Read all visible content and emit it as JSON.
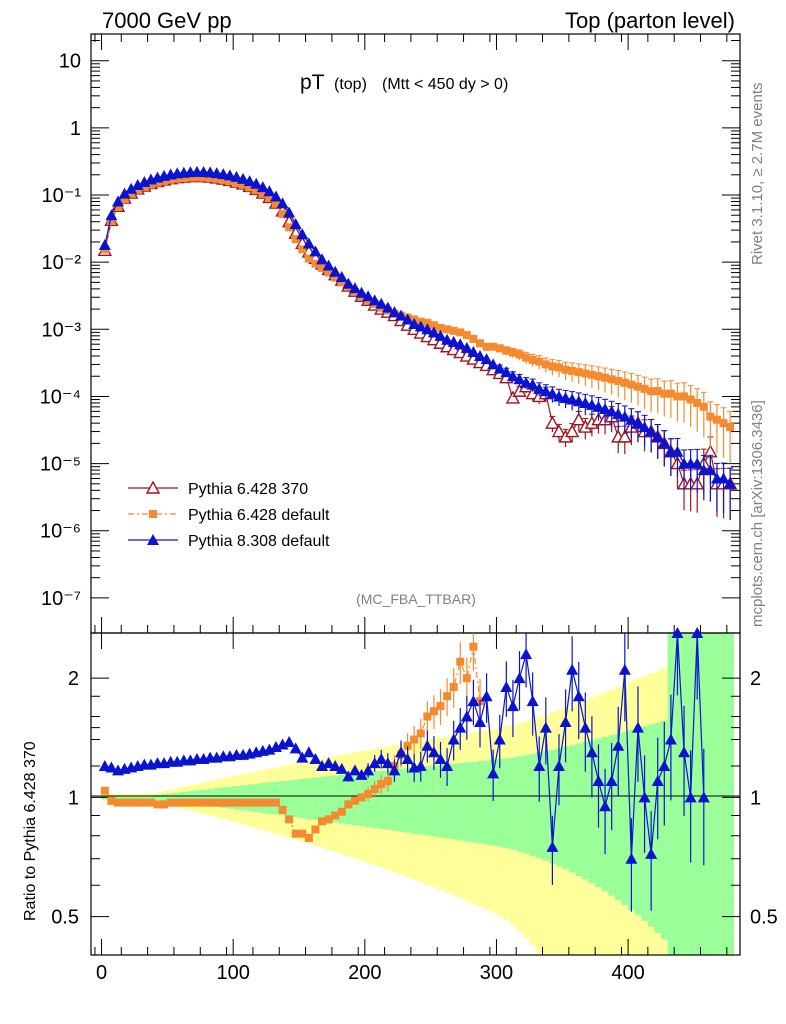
{
  "header": {
    "left": "7000 GeV pp",
    "right": "Top (parton level)"
  },
  "side": {
    "rivet": "Rivet 3.1.10, ≥ 2.7M events",
    "mcplots": "mcplots.cern.ch [arXiv:1306.3436]"
  },
  "plot_title": {
    "main": "pT",
    "sub1": "(top)",
    "sub2": "(Mtt < 450 dy > 0)"
  },
  "watermark": "(MC_FBA_TTBAR)",
  "ratio_ylabel": "Ratio to Pythia 6.428 370",
  "colors": {
    "p6_370": "#a0141e",
    "p6_default": "#f58a2e",
    "p8": "#0a14d0",
    "band_green": "#99ff99",
    "band_yellow": "#ffff99"
  },
  "chart_data": [
    {
      "type": "line",
      "panel": "main",
      "yscale": "log",
      "ylim": [
        3e-08,
        25
      ],
      "xlim": [
        -8,
        485
      ],
      "ytick_labels": [
        "10",
        "1",
        "10⁻¹",
        "10⁻²",
        "10⁻³",
        "10⁻⁴",
        "10⁻⁵",
        "10⁻⁶",
        "10⁻⁷"
      ],
      "legend_position": "lower-left",
      "series": [
        {
          "name": "Pythia 6.428 370",
          "marker": "open-triangle",
          "x": [
            2.5,
            7.5,
            12.5,
            17.5,
            22.5,
            27.5,
            32.5,
            37.5,
            42.5,
            47.5,
            52.5,
            57.5,
            62.5,
            67.5,
            72.5,
            77.5,
            82.5,
            87.5,
            92.5,
            97.5,
            102.5,
            107.5,
            112.5,
            117.5,
            122.5,
            127.5,
            132.5,
            137.5,
            142.5,
            147.5,
            152.5,
            157.5,
            162.5,
            167.5,
            172.5,
            177.5,
            182.5,
            187.5,
            192.5,
            197.5,
            202.5,
            207.5,
            212.5,
            217.5,
            222.5,
            227.5,
            232.5,
            237.5,
            242.5,
            247.5,
            252.5,
            257.5,
            262.5,
            267.5,
            272.5,
            277.5,
            282.5,
            287.5,
            292.5,
            297.5,
            302.5,
            307.5,
            312.5,
            317.5,
            322.5,
            327.5,
            332.5,
            337.5,
            342.5,
            347.5,
            352.5,
            357.5,
            362.5,
            367.5,
            372.5,
            377.5,
            382.5,
            387.5,
            392.5,
            397.5,
            402.5,
            407.5,
            412.5,
            417.5,
            422.5,
            427.5,
            432.5,
            437.5,
            442.5,
            447.5,
            452.5,
            457.5,
            462.5,
            467.5,
            472.5,
            477.5
          ],
          "y": [
            0.015,
            0.042,
            0.068,
            0.09,
            0.107,
            0.123,
            0.136,
            0.148,
            0.159,
            0.168,
            0.175,
            0.181,
            0.185,
            0.188,
            0.189,
            0.188,
            0.185,
            0.18,
            0.173,
            0.165,
            0.156,
            0.146,
            0.134,
            0.121,
            0.107,
            0.092,
            0.076,
            0.058,
            0.04,
            0.027,
            0.019,
            0.0142,
            0.0114,
            0.0094,
            0.0078,
            0.0065,
            0.0054,
            0.0044,
            0.0037,
            0.0031,
            0.0027,
            0.0023,
            0.002,
            0.0018,
            0.0016,
            0.00135,
            0.00115,
            0.001,
            0.00088,
            0.00078,
            0.0007,
            0.00062,
            0.00055,
            0.0005,
            0.00045,
            0.0004,
            0.00036,
            0.00032,
            0.00029,
            0.00025,
            0.00022,
            0.00019,
            9.5e-05,
            0.00012,
            0.00014,
            0.00011,
            0.0001,
            0.00011,
            4e-05,
            3e-05,
            2.5e-05,
            3e-05,
            4.5e-05,
            3.5e-05,
            4e-05,
            4.5e-05,
            4.5e-05,
            5e-05,
            2.5e-05,
            2.5e-05,
            3.5e-05,
            4e-05,
            3e-05,
            3e-05,
            2.5e-05,
            2e-05,
            1.5e-05,
            1e-05,
            5e-06,
            5e-06,
            5e-06,
            1e-05,
            1.5e-05,
            5e-06,
            5e-06,
            5e-06
          ]
        },
        {
          "name": "Pythia 6.428 default",
          "marker": "filled-square",
          "x": [
            2.5,
            7.5,
            12.5,
            17.5,
            22.5,
            27.5,
            32.5,
            37.5,
            42.5,
            47.5,
            52.5,
            57.5,
            62.5,
            67.5,
            72.5,
            77.5,
            82.5,
            87.5,
            92.5,
            97.5,
            102.5,
            107.5,
            112.5,
            117.5,
            122.5,
            127.5,
            132.5,
            137.5,
            142.5,
            147.5,
            152.5,
            157.5,
            162.5,
            167.5,
            172.5,
            177.5,
            182.5,
            187.5,
            192.5,
            197.5,
            202.5,
            207.5,
            212.5,
            217.5,
            222.5,
            227.5,
            232.5,
            237.5,
            242.5,
            247.5,
            252.5,
            257.5,
            262.5,
            267.5,
            272.5,
            277.5,
            282.5,
            287.5,
            292.5,
            297.5,
            302.5,
            307.5,
            312.5,
            317.5,
            322.5,
            327.5,
            332.5,
            337.5,
            342.5,
            347.5,
            352.5,
            357.5,
            362.5,
            367.5,
            372.5,
            377.5,
            382.5,
            387.5,
            392.5,
            397.5,
            402.5,
            407.5,
            412.5,
            417.5,
            422.5,
            427.5,
            432.5,
            437.5,
            442.5,
            447.5,
            452.5,
            457.5,
            462.5,
            467.5,
            472.5,
            477.5
          ],
          "y": [
            0.0155,
            0.041,
            0.066,
            0.087,
            0.104,
            0.119,
            0.132,
            0.143,
            0.153,
            0.162,
            0.169,
            0.175,
            0.179,
            0.182,
            0.183,
            0.182,
            0.179,
            0.174,
            0.168,
            0.16,
            0.151,
            0.142,
            0.13,
            0.118,
            0.104,
            0.09,
            0.074,
            0.052,
            0.033,
            0.022,
            0.0155,
            0.0113,
            0.0095,
            0.0082,
            0.007,
            0.0059,
            0.005,
            0.0043,
            0.0036,
            0.0031,
            0.0027,
            0.0024,
            0.0021,
            0.0019,
            0.0017,
            0.0016,
            0.0015,
            0.0014,
            0.0013,
            0.00125,
            0.00115,
            0.00105,
            0.001,
            0.00095,
            0.0009,
            0.00082,
            0.00072,
            0.00062,
            0.00055,
            0.00055,
            0.00052,
            0.00048,
            0.00045,
            0.00042,
            0.00038,
            0.00035,
            0.00033,
            0.0003,
            0.00028,
            0.00027,
            0.00025,
            0.00024,
            0.00023,
            0.00022,
            0.00021,
            0.0002,
            0.00019,
            0.00018,
            0.00017,
            0.00016,
            0.00015,
            0.00014,
            0.00013,
            0.00012,
            0.00012,
            0.00011,
            0.00011,
            0.0001,
            0.0001,
            9e-05,
            8e-05,
            7e-05,
            5e-05,
            4.5e-05,
            4e-05,
            3.5e-05
          ]
        },
        {
          "name": "Pythia 8.308 default",
          "marker": "filled-triangle",
          "x": [
            2.5,
            7.5,
            12.5,
            17.5,
            22.5,
            27.5,
            32.5,
            37.5,
            42.5,
            47.5,
            52.5,
            57.5,
            62.5,
            67.5,
            72.5,
            77.5,
            82.5,
            87.5,
            92.5,
            97.5,
            102.5,
            107.5,
            112.5,
            117.5,
            122.5,
            127.5,
            132.5,
            137.5,
            142.5,
            147.5,
            152.5,
            157.5,
            162.5,
            167.5,
            172.5,
            177.5,
            182.5,
            187.5,
            192.5,
            197.5,
            202.5,
            207.5,
            212.5,
            217.5,
            222.5,
            227.5,
            232.5,
            237.5,
            242.5,
            247.5,
            252.5,
            257.5,
            262.5,
            267.5,
            272.5,
            277.5,
            282.5,
            287.5,
            292.5,
            297.5,
            302.5,
            307.5,
            312.5,
            317.5,
            322.5,
            327.5,
            332.5,
            337.5,
            342.5,
            347.5,
            352.5,
            357.5,
            362.5,
            367.5,
            372.5,
            377.5,
            382.5,
            387.5,
            392.5,
            397.5,
            402.5,
            407.5,
            412.5,
            417.5,
            422.5,
            427.5,
            432.5,
            437.5,
            442.5,
            447.5,
            452.5,
            457.5,
            462.5,
            467.5,
            472.5,
            477.5
          ],
          "y": [
            0.018,
            0.05,
            0.08,
            0.105,
            0.124,
            0.141,
            0.156,
            0.17,
            0.182,
            0.193,
            0.202,
            0.21,
            0.215,
            0.219,
            0.221,
            0.22,
            0.217,
            0.212,
            0.205,
            0.196,
            0.186,
            0.174,
            0.161,
            0.147,
            0.131,
            0.114,
            0.095,
            0.075,
            0.055,
            0.037,
            0.026,
            0.019,
            0.0145,
            0.011,
            0.0089,
            0.0072,
            0.006,
            0.0048,
            0.0041,
            0.0035,
            0.0031,
            0.0027,
            0.0024,
            0.0021,
            0.0018,
            0.0016,
            0.0014,
            0.0012,
            0.0011,
            0.001,
            0.0009,
            0.0008,
            0.0007,
            0.00065,
            0.0006,
            0.00053,
            0.00046,
            0.0004,
            0.00036,
            0.0003,
            0.00026,
            0.00023,
            0.0002,
            0.00018,
            0.00016,
            0.00015,
            0.00013,
            0.00012,
            0.00011,
            0.0001,
            9.5e-05,
            9e-05,
            8.5e-05,
            8e-05,
            7.5e-05,
            7e-05,
            6.5e-05,
            6e-05,
            5.5e-05,
            5e-05,
            4.5e-05,
            4e-05,
            3.5e-05,
            3e-05,
            2.5e-05,
            2e-05,
            1.5e-05,
            1.5e-05,
            1e-05,
            1e-05,
            1e-05,
            8e-06,
            8e-06,
            6e-06,
            6e-06,
            5e-06
          ]
        }
      ]
    },
    {
      "type": "line",
      "panel": "ratio",
      "ylabel": "Ratio to Pythia 6.428 370",
      "yscale": "log",
      "ylim": [
        0.4,
        2.6
      ],
      "xlim": [
        -8,
        485
      ],
      "xticks": [
        0,
        100,
        200,
        300,
        400
      ],
      "yticks": [
        0.5,
        1,
        2
      ],
      "series": [
        {
          "name": "Pythia 6.428 default",
          "x": [
            2.5,
            7.5,
            12.5,
            17.5,
            22.5,
            27.5,
            32.5,
            37.5,
            42.5,
            47.5,
            52.5,
            57.5,
            62.5,
            67.5,
            72.5,
            77.5,
            82.5,
            87.5,
            92.5,
            97.5,
            102.5,
            107.5,
            112.5,
            117.5,
            122.5,
            127.5,
            132.5,
            137.5,
            142.5,
            147.5,
            152.5,
            157.5,
            162.5,
            167.5,
            172.5,
            177.5,
            182.5,
            187.5,
            192.5,
            197.5,
            202.5,
            207.5,
            212.5,
            217.5,
            222.5,
            227.5,
            232.5,
            237.5,
            242.5,
            247.5,
            252.5,
            257.5,
            262.5,
            267.5,
            272.5,
            277.5,
            282.5,
            287.5
          ],
          "y": [
            1.04,
            0.98,
            0.97,
            0.97,
            0.97,
            0.97,
            0.97,
            0.97,
            0.96,
            0.96,
            0.97,
            0.97,
            0.97,
            0.97,
            0.97,
            0.97,
            0.97,
            0.97,
            0.97,
            0.97,
            0.97,
            0.97,
            0.97,
            0.97,
            0.97,
            0.97,
            0.97,
            0.93,
            0.88,
            0.81,
            0.81,
            0.79,
            0.83,
            0.87,
            0.88,
            0.9,
            0.92,
            0.96,
            0.98,
            1.0,
            1.02,
            1.05,
            1.08,
            1.1,
            1.2,
            1.28,
            1.35,
            1.4,
            1.45,
            1.6,
            1.65,
            1.7,
            1.8,
            1.9,
            2.2,
            2.0,
            2.4,
            1.75
          ]
        },
        {
          "name": "Pythia 8.308 default",
          "x": [
            2.5,
            7.5,
            12.5,
            17.5,
            22.5,
            27.5,
            32.5,
            37.5,
            42.5,
            47.5,
            52.5,
            57.5,
            62.5,
            67.5,
            72.5,
            77.5,
            82.5,
            87.5,
            92.5,
            97.5,
            102.5,
            107.5,
            112.5,
            117.5,
            122.5,
            127.5,
            132.5,
            137.5,
            142.5,
            147.5,
            152.5,
            157.5,
            162.5,
            167.5,
            172.5,
            177.5,
            182.5,
            187.5,
            192.5,
            197.5,
            202.5,
            207.5,
            212.5,
            217.5,
            222.5,
            227.5,
            232.5,
            237.5,
            242.5,
            247.5,
            252.5,
            257.5,
            262.5,
            267.5,
            272.5,
            277.5,
            282.5,
            287.5,
            292.5,
            297.5,
            302.5,
            307.5,
            312.5,
            317.5,
            322.5,
            327.5,
            332.5,
            337.5,
            342.5,
            347.5,
            352.5,
            357.5,
            362.5,
            367.5,
            372.5,
            377.5,
            382.5,
            387.5,
            392.5,
            397.5,
            402.5,
            407.5,
            412.5,
            417.5,
            422.5,
            427.5,
            432.5,
            437.5,
            442.5,
            447.5,
            452.5,
            457.5
          ],
          "y": [
            1.2,
            1.19,
            1.17,
            1.18,
            1.19,
            1.2,
            1.21,
            1.21,
            1.22,
            1.22,
            1.23,
            1.23,
            1.24,
            1.24,
            1.25,
            1.25,
            1.26,
            1.26,
            1.27,
            1.27,
            1.28,
            1.28,
            1.29,
            1.3,
            1.31,
            1.32,
            1.34,
            1.36,
            1.38,
            1.33,
            1.26,
            1.3,
            1.25,
            1.2,
            1.22,
            1.2,
            1.18,
            1.13,
            1.17,
            1.14,
            1.17,
            1.22,
            1.25,
            1.22,
            1.17,
            1.3,
            1.25,
            1.19,
            1.2,
            1.35,
            1.3,
            1.25,
            1.2,
            1.4,
            1.5,
            1.6,
            1.75,
            1.55,
            1.8,
            1.15,
            1.4,
            1.9,
            1.7,
            2.0,
            2.3,
            1.75,
            1.2,
            1.5,
            0.75,
            1.2,
            1.55,
            2.1,
            1.8,
            1.5,
            1.3,
            1.1,
            0.95,
            1.1,
            1.35,
            2.1,
            0.7,
            1.5,
            1.0,
            0.72,
            1.1,
            1.2,
            1.4,
            2.6,
            1.3,
            1.0,
            2.6,
            1.0
          ]
        }
      ]
    }
  ]
}
